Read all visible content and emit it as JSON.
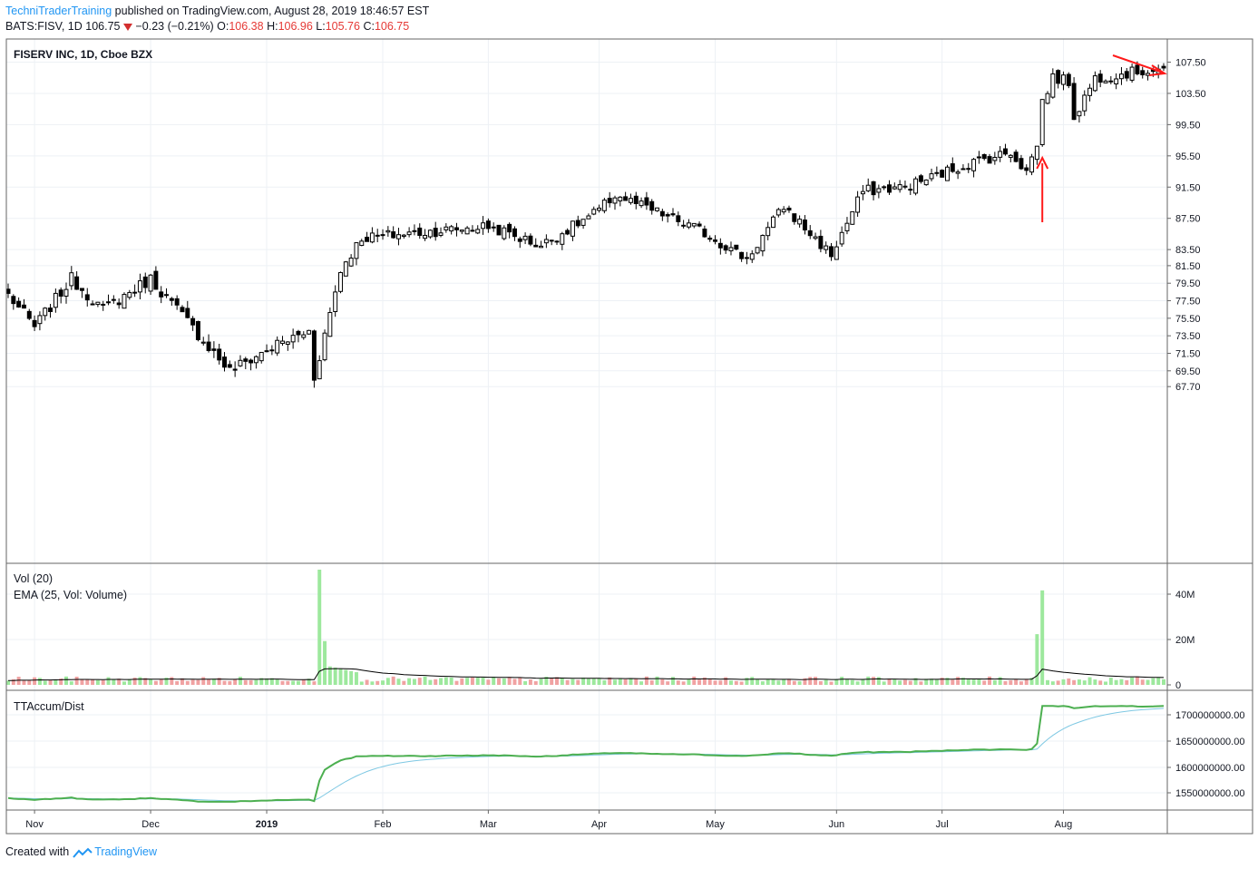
{
  "header": {
    "author": "TechniTraderTraining",
    "published_text": "published on TradingView.com, August 28, 2019 18:46:57 EST",
    "symbol": "BATS:FISV, 1D",
    "last": "106.75",
    "change": "−0.23 (−0.21%)",
    "o_label": "O:",
    "o_value": "106.38",
    "h_label": "H:",
    "h_value": "106.96",
    "l_label": "L:",
    "l_value": "105.76",
    "c_label": "C:",
    "c_value": "106.75"
  },
  "price_pane": {
    "title": "FISERV INC, 1D, Cboe BZX"
  },
  "volume_pane": {
    "title1": "Vol (20)",
    "title2": "EMA (25, Vol: Volume)"
  },
  "accum_pane": {
    "title": "TTAccum/Dist"
  },
  "footer": {
    "created_with": "Created with",
    "brand": "TradingView"
  },
  "colors": {
    "up_volume": "#9de89d",
    "down_volume": "#f0a2a2",
    "accum_line": "#4caf50",
    "accum_signal": "#7ec8e3",
    "arrow": "#ff1a1a",
    "grid": "#edf1f5",
    "border": "#666666"
  },
  "chart_data": [
    {
      "type": "candlestick",
      "price_ticks": [
        "107.50",
        "103.50",
        "99.50",
        "95.50",
        "91.50",
        "87.50",
        "83.50",
        "81.50",
        "79.50",
        "77.50",
        "75.50",
        "73.50",
        "71.50",
        "69.50",
        "67.70"
      ],
      "time_labels": [
        "Nov",
        "Dec",
        "2019",
        "Feb",
        "Mar",
        "Apr",
        "May",
        "Jun",
        "Jul",
        "Aug"
      ],
      "ylim": [
        66.5,
        109.3
      ],
      "key_points": [
        {
          "date": "2018-10-25",
          "close": 78.2
        },
        {
          "date": "2018-11-01",
          "close": 74.5
        },
        {
          "date": "2018-11-12",
          "close": 80.0
        },
        {
          "date": "2018-11-20",
          "close": 76.5
        },
        {
          "date": "2018-12-03",
          "close": 80.0
        },
        {
          "date": "2018-12-24",
          "close": 69.5
        },
        {
          "date": "2019-01-04",
          "close": 72.5
        },
        {
          "date": "2019-01-14",
          "close": 74.0
        },
        {
          "date": "2019-01-15",
          "close": 68.8
        },
        {
          "date": "2019-01-22",
          "close": 81.0
        },
        {
          "date": "2019-01-28",
          "close": 85.0
        },
        {
          "date": "2019-03-01",
          "close": 86.5
        },
        {
          "date": "2019-03-15",
          "close": 84.0
        },
        {
          "date": "2019-04-01",
          "close": 88.5
        },
        {
          "date": "2019-04-04",
          "close": 90.5
        },
        {
          "date": "2019-04-26",
          "close": 86.0
        },
        {
          "date": "2019-05-09",
          "close": 82.3
        },
        {
          "date": "2019-05-20",
          "close": 89.0
        },
        {
          "date": "2019-05-31",
          "close": 82.8
        },
        {
          "date": "2019-06-10",
          "close": 91.0
        },
        {
          "date": "2019-06-20",
          "close": 91.5
        },
        {
          "date": "2019-07-08",
          "close": 94.5
        },
        {
          "date": "2019-07-18",
          "close": 96.0
        },
        {
          "date": "2019-07-23",
          "close": 93.5
        },
        {
          "date": "2019-07-25",
          "close": 97.0
        },
        {
          "date": "2019-07-26",
          "close": 102.5
        },
        {
          "date": "2019-07-30",
          "close": 105.5
        },
        {
          "date": "2019-08-02",
          "close": 105.0
        },
        {
          "date": "2019-08-05",
          "close": 100.5
        },
        {
          "date": "2019-08-09",
          "close": 105.5
        },
        {
          "date": "2019-08-28",
          "close": 106.75
        }
      ]
    },
    {
      "type": "bar",
      "name": "Vol (20)",
      "y_ticks": [
        "40M",
        "20M",
        "0"
      ],
      "ylim": [
        0,
        50000000
      ],
      "typical_volume": 2500000,
      "spikes": [
        {
          "date": "2019-01-16",
          "volume": 50000000
        },
        {
          "date": "2019-01-17",
          "volume": 19000000
        },
        {
          "date": "2019-07-25",
          "volume": 22000000
        },
        {
          "date": "2019-07-26",
          "volume": 41000000
        }
      ],
      "ema_period": 25
    },
    {
      "type": "line",
      "name": "TTAccum/Dist",
      "y_ticks": [
        "1700000000.00",
        "1650000000.00",
        "1600000000.00",
        "1550000000.00"
      ],
      "ylim": [
        1525000000,
        1725000000
      ]
    }
  ]
}
